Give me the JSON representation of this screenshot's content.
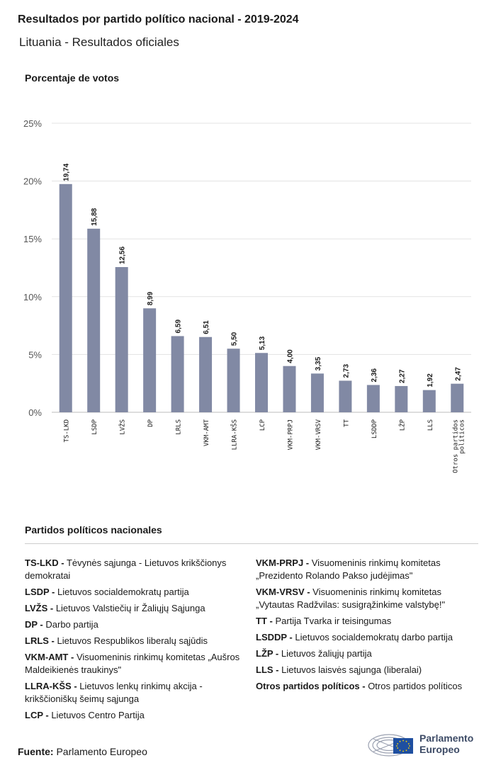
{
  "header": {
    "title": "Resultados por partido político nacional - 2019-2024",
    "subtitle": "Lituania - Resultados oficiales"
  },
  "chart_data": {
    "type": "bar",
    "ylabel": "Porcentaje de votos",
    "ylim": [
      0,
      25
    ],
    "yticks": [
      0,
      5,
      10,
      15,
      20,
      25
    ],
    "ytick_labels": [
      "0%",
      "5%",
      "10%",
      "15%",
      "20%",
      "25%"
    ],
    "grid": true,
    "bar_color": "#8189a4",
    "categories": [
      "TS-LKD",
      "LSDP",
      "LVŽS",
      "DP",
      "LRLS",
      "VKM-AMT",
      "LLRA-KŠS",
      "LCP",
      "VKM-PRPJ",
      "VKM-VRSV",
      "TT",
      "LSDDP",
      "LŽP",
      "LLS",
      "Otros partidos políticos"
    ],
    "values": [
      19.74,
      15.88,
      12.56,
      8.99,
      6.59,
      6.51,
      5.5,
      5.13,
      4.0,
      3.35,
      2.73,
      2.36,
      2.27,
      1.92,
      2.47
    ],
    "value_labels": [
      "19,74",
      "15,88",
      "12,56",
      "8,99",
      "6,59",
      "6,51",
      "5,50",
      "5,13",
      "4,00",
      "3,35",
      "2,73",
      "2,36",
      "2,27",
      "1,92",
      "2,47"
    ]
  },
  "legend": {
    "heading": "Partidos políticos nacionales",
    "left": [
      {
        "abbr": "TS-LKD -",
        "name": "Tėvynės sąjunga - Lietuvos krikščionys demokratai"
      },
      {
        "abbr": "LSDP -",
        "name": "Lietuvos socialdemokratų partija"
      },
      {
        "abbr": "LVŽS -",
        "name": "Lietuvos Valstiečių ir Žaliųjų Sąjunga"
      },
      {
        "abbr": "DP -",
        "name": "Darbo partija"
      },
      {
        "abbr": "LRLS -",
        "name": "Lietuvos Respublikos liberalų sąjūdis"
      },
      {
        "abbr": "VKM-AMT -",
        "name": "Visuomeninis rinkimų komitetas „Aušros Maldeikienės traukinys\""
      },
      {
        "abbr": "LLRA-KŠS -",
        "name": "Lietuvos lenkų rinkimų akcija - krikščioniškų šeimų sąjunga"
      },
      {
        "abbr": "LCP -",
        "name": "Lietuvos Centro Partija"
      }
    ],
    "right": [
      {
        "abbr": "VKM-PRPJ -",
        "name": "Visuomeninis rinkimų komitetas „Prezidento Rolando Pakso judėjimas\""
      },
      {
        "abbr": "VKM-VRSV -",
        "name": "Visuomeninis rinkimų komitetas „Vytautas Radžvilas: susigrąžinkime valstybę!\""
      },
      {
        "abbr": "TT -",
        "name": "Partija Tvarka ir teisingumas"
      },
      {
        "abbr": "LSDDP -",
        "name": "Lietuvos socialdemokratų darbo partija"
      },
      {
        "abbr": "LŽP -",
        "name": "Lietuvos žaliųjų partija"
      },
      {
        "abbr": "LLS -",
        "name": "Lietuvos laisvės sąjunga (liberalai)"
      },
      {
        "abbr": "Otros partidos políticos -",
        "name": "Otros partidos políticos"
      }
    ]
  },
  "footer": {
    "source_label": "Fuente:",
    "source_value": "Parlamento Europeo",
    "logo_line1": "Parlamento",
    "logo_line2": "Europeo"
  }
}
